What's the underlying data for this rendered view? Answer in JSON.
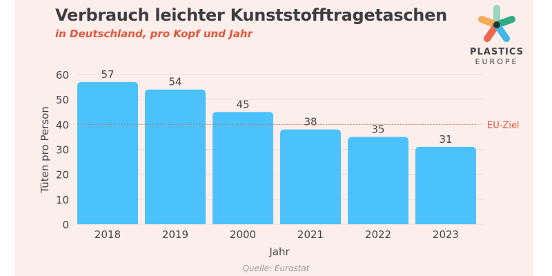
{
  "header": {
    "title": "Verbrauch leichter Kunststofftragetaschen",
    "subtitle": "in Deutschland, pro Kopf und Jahr"
  },
  "logo": {
    "line1": "PLASTICS",
    "line2": "EUROPE"
  },
  "source": "Quelle: Eurostat",
  "colors": {
    "bar": "#4cc2fc",
    "reference_line": "#e8553b",
    "title": "#3d3d3d",
    "subtitle": "#e8553b",
    "background": "#fcefeb"
  },
  "chart_data": {
    "type": "bar",
    "title": "Verbrauch leichter Kunststofftragetaschen",
    "subtitle": "in Deutschland, pro Kopf und Jahr",
    "categories": [
      "2018",
      "2019",
      "2000",
      "2021",
      "2022",
      "2023"
    ],
    "values": [
      57,
      54,
      45,
      38,
      35,
      31
    ],
    "xlabel": "Jahr",
    "ylabel": "Tüten pro Person",
    "ylim": [
      0,
      60
    ],
    "yticks": [
      0,
      10,
      20,
      30,
      40,
      50,
      60
    ],
    "grid": true,
    "reference_line": {
      "value": 40,
      "label": "EU-Ziel",
      "style": "dotted"
    }
  }
}
